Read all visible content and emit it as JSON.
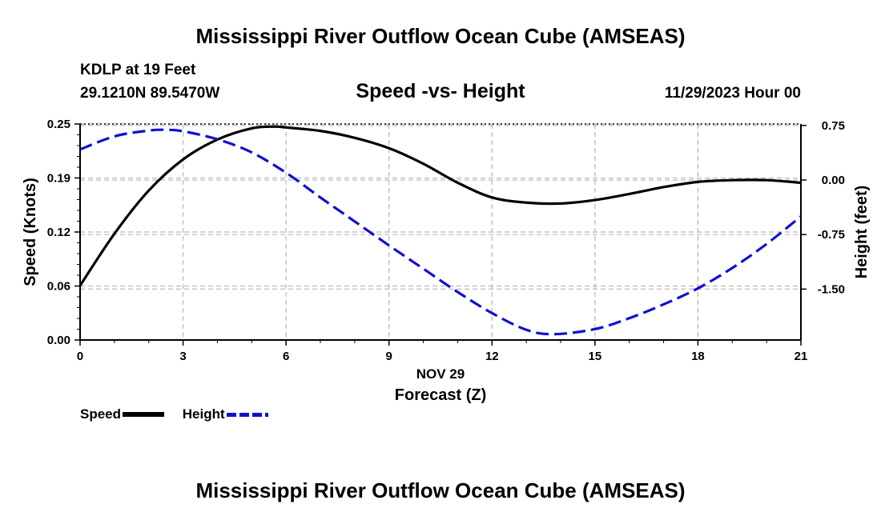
{
  "header": {
    "title": "Mississippi River Outflow Ocean Cube (AMSEAS)",
    "station": "KDLP at 19 Feet",
    "coords": "29.1210N  89.5470W",
    "subtitle": "Speed -vs- Height",
    "datetime": "11/29/2023 Hour 00"
  },
  "footer": {
    "title": "Mississippi River Outflow Ocean Cube (AMSEAS)"
  },
  "legend": {
    "speed_label": "Speed",
    "height_label": "Height"
  },
  "chart_data": {
    "type": "line",
    "title": "Speed -vs- Height",
    "xlabel": "Forecast (Z)",
    "xdate_label": "NOV 29",
    "ylabel": "Speed (Knots)",
    "y2label": "Height (feet)",
    "xlim": [
      0,
      21
    ],
    "ylim": [
      0,
      0.25
    ],
    "y2lim": [
      -2.2,
      0.77
    ],
    "xticks": [
      "0",
      "3",
      "6",
      "9",
      "12",
      "15",
      "18",
      "21"
    ],
    "yticks": [
      "0.00",
      "0.06",
      "0.12",
      "0.19",
      "0.25"
    ],
    "ytick_values": [
      0,
      0.0625,
      0.125,
      0.1875,
      0.25
    ],
    "y2ticks": [
      "0.75",
      "0.00",
      "-0.75",
      "-1.50"
    ],
    "y2tick_values": [
      0.75,
      0,
      -0.75,
      -1.5
    ],
    "grid": true,
    "series": [
      {
        "name": "Speed",
        "axis": "left",
        "color": "#000000",
        "style": "solid",
        "x": [
          0,
          1,
          2,
          3,
          4,
          5,
          5.7,
          6,
          7,
          8,
          9,
          10,
          11,
          12,
          13,
          14,
          15,
          16,
          17,
          18,
          19,
          20,
          21
        ],
        "values": [
          0.063,
          0.123,
          0.173,
          0.209,
          0.232,
          0.245,
          0.247,
          0.246,
          0.242,
          0.234,
          0.222,
          0.204,
          0.182,
          0.165,
          0.159,
          0.158,
          0.162,
          0.169,
          0.177,
          0.183,
          0.185,
          0.185,
          0.182
        ]
      },
      {
        "name": "Height",
        "axis": "right",
        "color": "#1010d0",
        "style": "dashed",
        "x": [
          0,
          1,
          2,
          2.5,
          3,
          4,
          5,
          6,
          7,
          8,
          9,
          10,
          11,
          12,
          13,
          13.8,
          15,
          16,
          17,
          18,
          19,
          20,
          21
        ],
        "values": [
          0.42,
          0.6,
          0.68,
          0.69,
          0.67,
          0.56,
          0.38,
          0.1,
          -0.24,
          -0.57,
          -0.9,
          -1.22,
          -1.54,
          -1.83,
          -2.06,
          -2.12,
          -2.05,
          -1.9,
          -1.71,
          -1.49,
          -1.21,
          -0.88,
          -0.5
        ]
      }
    ]
  }
}
